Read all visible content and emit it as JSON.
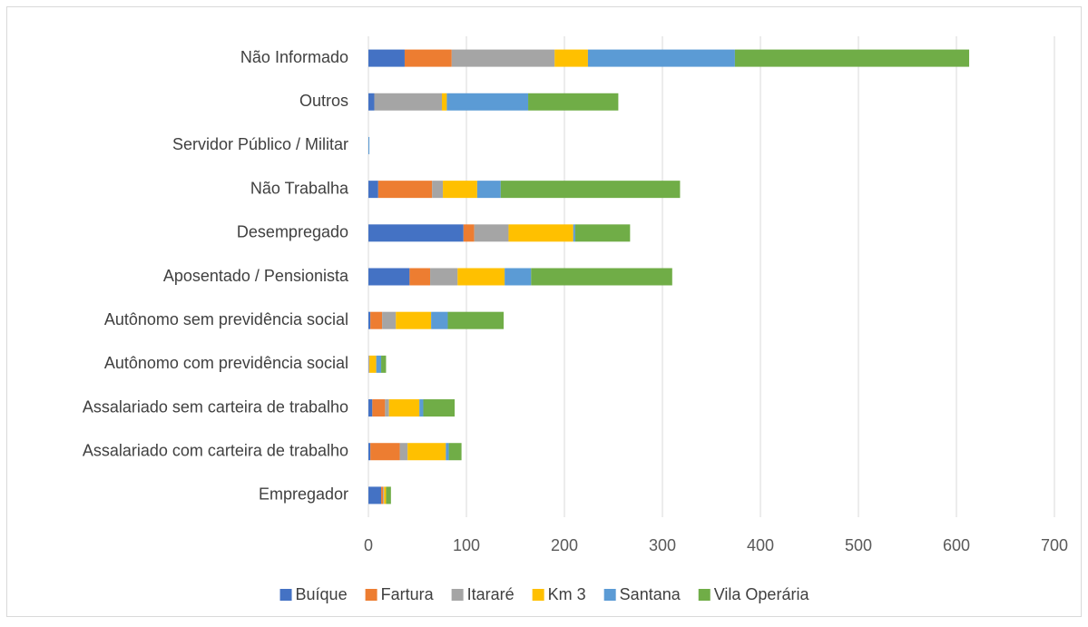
{
  "chart_data": {
    "type": "stacked-bar-horizontal",
    "categories": [
      "Empregador",
      "Assalariado com carteira de trabalho",
      "Assalariado sem carteira de trabalho",
      "Autônomo com previdência social",
      "Autônomo sem previdência social",
      "Aposentado / Pensionista",
      "Desempregado",
      "Não Trabalha",
      "Servidor Público / Militar",
      "Outros",
      "Não Informado"
    ],
    "series": [
      {
        "name": "Buíque",
        "color": "#4472c4",
        "values": [
          13,
          2,
          4,
          0,
          2,
          42,
          97,
          10,
          0,
          6,
          37
        ]
      },
      {
        "name": "Fartura",
        "color": "#ed7d31",
        "values": [
          2,
          30,
          13,
          0,
          12,
          21,
          11,
          55,
          0,
          0,
          48
        ]
      },
      {
        "name": "Itararé",
        "color": "#a5a5a5",
        "values": [
          1,
          8,
          4,
          1,
          14,
          28,
          35,
          11,
          0,
          69,
          105
        ]
      },
      {
        "name": "Km 3",
        "color": "#ffc000",
        "values": [
          2,
          39,
          31,
          7,
          36,
          48,
          66,
          35,
          0,
          5,
          34
        ]
      },
      {
        "name": "Santana",
        "color": "#5b9bd5",
        "values": [
          0,
          3,
          4,
          5,
          17,
          27,
          2,
          24,
          1,
          83,
          150
        ]
      },
      {
        "name": "Vila Operária",
        "color": "#70ad47",
        "values": [
          5,
          13,
          32,
          5,
          57,
          144,
          56,
          183,
          0,
          92,
          239
        ]
      }
    ],
    "xlim": [
      0,
      700
    ],
    "xticks": [
      0,
      100,
      200,
      300,
      400,
      500,
      600,
      700
    ],
    "grid": true,
    "legend": "bottom"
  }
}
